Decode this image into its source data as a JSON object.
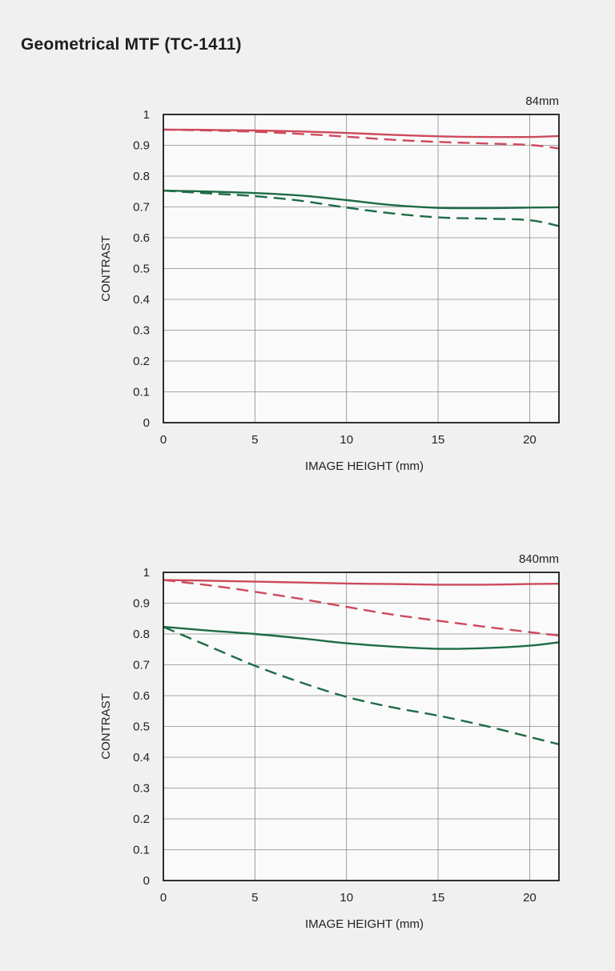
{
  "page": {
    "title": "Geometrical MTF (TC-1411)"
  },
  "colors": {
    "red": "#cc4a5c",
    "green": "#1e6b46",
    "grid": "#8a8a8a",
    "frame": "#1a1a1a",
    "plot_bg": "#fafafa"
  },
  "chart_data": [
    {
      "type": "line",
      "annotation": "84mm",
      "xlabel": "IMAGE HEIGHT (mm)",
      "ylabel": "CONTRAST",
      "xlim": [
        0,
        21.6
      ],
      "ylim": [
        0,
        1
      ],
      "x_ticks": [
        0,
        5,
        10,
        15,
        20
      ],
      "y_ticks": [
        0,
        0.1,
        0.2,
        0.3,
        0.4,
        0.5,
        0.6,
        0.7,
        0.8,
        0.9,
        1
      ],
      "x_tick_labels": [
        "0",
        "5",
        "10",
        "15",
        "20"
      ],
      "y_tick_labels": [
        "0",
        "0.1",
        "0.2",
        "0.3",
        "0.4",
        "0.5",
        "0.6",
        "0.7",
        "0.8",
        "0.9",
        "1"
      ],
      "grid": true,
      "series": [
        {
          "color": "red",
          "style": "solid",
          "x": [
            0,
            2.5,
            5,
            7.5,
            10,
            12.5,
            15,
            17.5,
            20,
            21.6
          ],
          "y": [
            0.951,
            0.95,
            0.948,
            0.945,
            0.94,
            0.934,
            0.929,
            0.927,
            0.927,
            0.93
          ]
        },
        {
          "color": "red",
          "style": "dashed",
          "x": [
            0,
            2.5,
            5,
            7.5,
            10,
            12.5,
            15,
            17.5,
            20,
            21.6
          ],
          "y": [
            0.951,
            0.948,
            0.944,
            0.937,
            0.928,
            0.918,
            0.911,
            0.906,
            0.901,
            0.89
          ]
        },
        {
          "color": "green",
          "style": "solid",
          "x": [
            0,
            2.5,
            5,
            7.5,
            10,
            12.5,
            15,
            17.5,
            20,
            21.6
          ],
          "y": [
            0.753,
            0.75,
            0.745,
            0.737,
            0.722,
            0.706,
            0.697,
            0.696,
            0.698,
            0.699
          ]
        },
        {
          "color": "green",
          "style": "dashed",
          "x": [
            0,
            2.5,
            5,
            7.5,
            10,
            12.5,
            15,
            17.5,
            20,
            21.6
          ],
          "y": [
            0.753,
            0.744,
            0.735,
            0.72,
            0.698,
            0.679,
            0.666,
            0.662,
            0.657,
            0.638
          ]
        }
      ]
    },
    {
      "type": "line",
      "annotation": "840mm",
      "xlabel": "IMAGE HEIGHT (mm)",
      "ylabel": "CONTRAST",
      "xlim": [
        0,
        21.6
      ],
      "ylim": [
        0,
        1
      ],
      "x_ticks": [
        0,
        5,
        10,
        15,
        20
      ],
      "y_ticks": [
        0,
        0.1,
        0.2,
        0.3,
        0.4,
        0.5,
        0.6,
        0.7,
        0.8,
        0.9,
        1
      ],
      "x_tick_labels": [
        "0",
        "5",
        "10",
        "15",
        "20"
      ],
      "y_tick_labels": [
        "0",
        "0.1",
        "0.2",
        "0.3",
        "0.4",
        "0.5",
        "0.6",
        "0.7",
        "0.8",
        "0.9",
        "1"
      ],
      "grid": true,
      "series": [
        {
          "color": "red",
          "style": "solid",
          "x": [
            0,
            2.5,
            5,
            7.5,
            10,
            12.5,
            15,
            17.5,
            20,
            21.6
          ],
          "y": [
            0.975,
            0.973,
            0.97,
            0.967,
            0.964,
            0.962,
            0.96,
            0.96,
            0.962,
            0.963
          ]
        },
        {
          "color": "red",
          "style": "dashed",
          "x": [
            0,
            2.5,
            5,
            7.5,
            10,
            12.5,
            15,
            17.5,
            20,
            21.6
          ],
          "y": [
            0.975,
            0.958,
            0.937,
            0.914,
            0.888,
            0.863,
            0.843,
            0.824,
            0.806,
            0.795
          ]
        },
        {
          "color": "green",
          "style": "solid",
          "x": [
            0,
            2.5,
            5,
            7.5,
            10,
            12.5,
            15,
            17.5,
            20,
            21.6
          ],
          "y": [
            0.823,
            0.811,
            0.8,
            0.786,
            0.77,
            0.759,
            0.752,
            0.754,
            0.762,
            0.773
          ]
        },
        {
          "color": "green",
          "style": "dashed",
          "x": [
            0,
            2.5,
            5,
            7.5,
            10,
            12.5,
            15,
            17.5,
            20,
            21.6
          ],
          "y": [
            0.823,
            0.76,
            0.697,
            0.643,
            0.596,
            0.562,
            0.535,
            0.503,
            0.466,
            0.442
          ]
        }
      ]
    }
  ]
}
